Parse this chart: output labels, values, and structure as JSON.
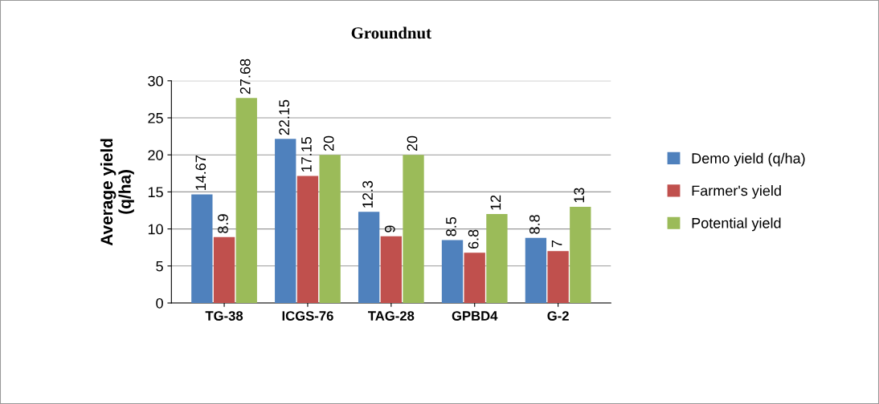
{
  "chart_data": {
    "type": "bar",
    "title": "Groundnut",
    "ylabel": "Average yield\n(q/ha)",
    "categories": [
      "TG-38",
      "ICGS-76",
      "TAG-28",
      "GPBD4",
      "G-2"
    ],
    "series": [
      {
        "name": "Demo yield (q/ha)",
        "color": "#4f81bd",
        "values": [
          14.67,
          22.15,
          12.3,
          8.5,
          8.8
        ]
      },
      {
        "name": "Farmer's yield",
        "color": "#c0504d",
        "values": [
          8.9,
          17.15,
          9,
          6.8,
          7
        ]
      },
      {
        "name": "Potential yield",
        "color": "#9bbb59",
        "values": [
          27.68,
          20,
          20,
          12,
          13
        ]
      }
    ],
    "ylim": [
      0,
      30
    ],
    "yticks": [
      0,
      5,
      10,
      15,
      20,
      25,
      30
    ],
    "grid": "y",
    "legend": "right",
    "data_labels": true
  }
}
